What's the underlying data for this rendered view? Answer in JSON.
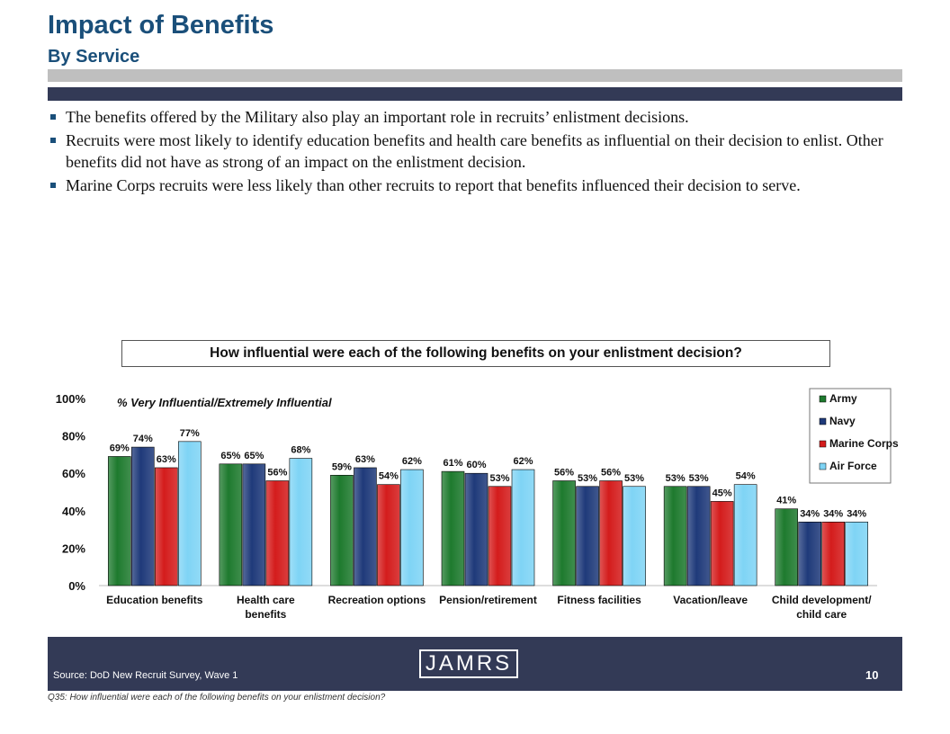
{
  "header": {
    "title": "Impact of Benefits",
    "subtitle": "By Service"
  },
  "bullets": [
    "The benefits offered by the Military also play an important role in recruits’ enlistment decisions.",
    "Recruits were most likely to identify education benefits and health care benefits as influential on their decision to enlist.  Other benefits did not have as strong of an impact on the enlistment decision.",
    "Marine Corps recruits were less likely than other recruits to report that benefits influenced their decision to serve."
  ],
  "chart_question": "How influential were each of the following benefits on your enlistment decision?",
  "chart_data": {
    "type": "bar",
    "annotation": "% Very Influential/Extremely Influential",
    "categories": [
      [
        "Education benefits"
      ],
      [
        "Health care",
        "benefits"
      ],
      [
        "Recreation options"
      ],
      [
        "Pension/retirement"
      ],
      [
        "Fitness facilities"
      ],
      [
        "Vacation/leave"
      ],
      [
        "Child development/",
        "child care"
      ]
    ],
    "series": [
      {
        "name": "Army",
        "color": "#1e7a2e",
        "values": [
          69,
          65,
          59,
          61,
          56,
          53,
          41
        ]
      },
      {
        "name": "Navy",
        "color": "#1f3a7a",
        "values": [
          74,
          65,
          63,
          60,
          53,
          53,
          34
        ]
      },
      {
        "name": "Marine Corps",
        "color": "#d41c1c",
        "values": [
          63,
          56,
          54,
          53,
          56,
          45,
          34
        ]
      },
      {
        "name": "Air Force",
        "color": "#7fd4f5",
        "values": [
          77,
          68,
          62,
          62,
          53,
          54,
          34
        ]
      }
    ],
    "value_suffix": "%",
    "ylim": [
      0,
      100
    ],
    "yticks": [
      0,
      20,
      40,
      60,
      80,
      100
    ],
    "grid": false,
    "legend_position": "top-right"
  },
  "footer": {
    "source": "Source:  DoD New Recruit Survey, Wave 1",
    "logo_text": "JAMRS",
    "page_number": "10",
    "footnote": "Q35:  How influential were each of the following benefits on your enlistment decision?"
  }
}
